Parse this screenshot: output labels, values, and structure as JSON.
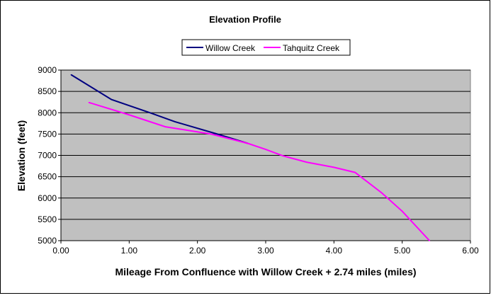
{
  "chart_data": {
    "type": "line",
    "title": "Elevation Profile",
    "xlabel": "Mileage From Confluence with Willow Creek + 2.74 miles (miles)",
    "ylabel": "Elevation (feet)",
    "xlim": [
      0,
      6
    ],
    "ylim": [
      5000,
      9000
    ],
    "xticks": [
      "0.00",
      "1.00",
      "2.00",
      "3.00",
      "4.00",
      "5.00",
      "6.00"
    ],
    "yticks": [
      "5000",
      "5500",
      "6000",
      "6500",
      "7000",
      "7500",
      "8000",
      "8500",
      "9000"
    ],
    "grid": "horizontal",
    "legend_position": "top",
    "series": [
      {
        "name": "Willow Creek",
        "color": "#000080",
        "x": [
          0.15,
          0.74,
          1.32,
          1.67,
          2.29,
          2.74
        ],
        "y": [
          8890,
          8310,
          7990,
          7790,
          7500,
          7280
        ]
      },
      {
        "name": "Tahquitz Creek",
        "color": "#FF00FF",
        "x": [
          0.41,
          1.0,
          1.53,
          2.2,
          2.74,
          3.0,
          3.25,
          3.6,
          4.0,
          4.31,
          4.7,
          5.0,
          5.4
        ],
        "y": [
          8240,
          7950,
          7670,
          7500,
          7280,
          7140,
          6990,
          6840,
          6720,
          6600,
          6120,
          5690,
          5000
        ]
      }
    ]
  }
}
